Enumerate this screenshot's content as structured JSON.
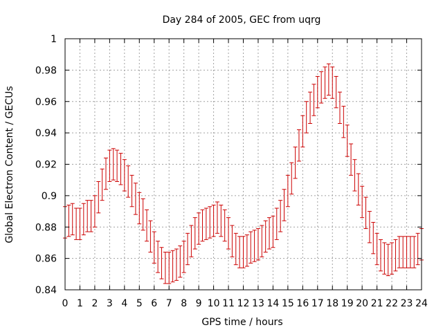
{
  "chart_data": {
    "type": "scatter",
    "title": "Day 284 of 2005, GEC from uqrg",
    "xlabel": "GPS time / hours",
    "ylabel": "Global Electron Content / GECUs",
    "xlim": [
      0,
      24
    ],
    "ylim": [
      0.84,
      1.0
    ],
    "xticks": [
      "0",
      "1",
      "2",
      "3",
      "4",
      "5",
      "6",
      "7",
      "8",
      "9",
      "10",
      "11",
      "12",
      "13",
      "14",
      "15",
      "16",
      "17",
      "18",
      "19",
      "20",
      "21",
      "22",
      "23",
      "24"
    ],
    "yticks": [
      "0.84",
      "0.86",
      "0.88",
      "0.9",
      "0.92",
      "0.94",
      "0.96",
      "0.98",
      "1"
    ],
    "grid": true,
    "legend": "none",
    "error_bar_color": "#cc0000",
    "series": [
      {
        "error": 0.01,
        "points": [
          {
            "x": 0.0,
            "y": 0.883
          },
          {
            "x": 0.25,
            "y": 0.884
          },
          {
            "x": 0.5,
            "y": 0.885
          },
          {
            "x": 0.75,
            "y": 0.882
          },
          {
            "x": 1.0,
            "y": 0.882
          },
          {
            "x": 1.25,
            "y": 0.885
          },
          {
            "x": 1.5,
            "y": 0.887
          },
          {
            "x": 1.75,
            "y": 0.887
          },
          {
            "x": 2.0,
            "y": 0.89
          },
          {
            "x": 2.25,
            "y": 0.899
          },
          {
            "x": 2.5,
            "y": 0.907
          },
          {
            "x": 2.75,
            "y": 0.914
          },
          {
            "x": 3.0,
            "y": 0.919
          },
          {
            "x": 3.25,
            "y": 0.92
          },
          {
            "x": 3.5,
            "y": 0.919
          },
          {
            "x": 3.75,
            "y": 0.917
          },
          {
            "x": 4.0,
            "y": 0.913
          },
          {
            "x": 4.25,
            "y": 0.909
          },
          {
            "x": 4.5,
            "y": 0.903
          },
          {
            "x": 4.75,
            "y": 0.898
          },
          {
            "x": 5.0,
            "y": 0.892
          },
          {
            "x": 5.25,
            "y": 0.888
          },
          {
            "x": 5.5,
            "y": 0.881
          },
          {
            "x": 5.75,
            "y": 0.874
          },
          {
            "x": 6.0,
            "y": 0.867
          },
          {
            "x": 6.25,
            "y": 0.861
          },
          {
            "x": 6.5,
            "y": 0.857
          },
          {
            "x": 6.75,
            "y": 0.854
          },
          {
            "x": 7.0,
            "y": 0.854
          },
          {
            "x": 7.25,
            "y": 0.855
          },
          {
            "x": 7.5,
            "y": 0.856
          },
          {
            "x": 7.75,
            "y": 0.858
          },
          {
            "x": 8.0,
            "y": 0.861
          },
          {
            "x": 8.25,
            "y": 0.866
          },
          {
            "x": 8.5,
            "y": 0.871
          },
          {
            "x": 8.75,
            "y": 0.876
          },
          {
            "x": 9.0,
            "y": 0.879
          },
          {
            "x": 9.25,
            "y": 0.881
          },
          {
            "x": 9.5,
            "y": 0.882
          },
          {
            "x": 9.75,
            "y": 0.883
          },
          {
            "x": 10.0,
            "y": 0.884
          },
          {
            "x": 10.25,
            "y": 0.886
          },
          {
            "x": 10.5,
            "y": 0.884
          },
          {
            "x": 10.75,
            "y": 0.881
          },
          {
            "x": 11.0,
            "y": 0.876
          },
          {
            "x": 11.25,
            "y": 0.871
          },
          {
            "x": 11.5,
            "y": 0.866
          },
          {
            "x": 11.75,
            "y": 0.864
          },
          {
            "x": 12.0,
            "y": 0.864
          },
          {
            "x": 12.25,
            "y": 0.865
          },
          {
            "x": 12.5,
            "y": 0.867
          },
          {
            "x": 12.75,
            "y": 0.868
          },
          {
            "x": 13.0,
            "y": 0.869
          },
          {
            "x": 13.25,
            "y": 0.871
          },
          {
            "x": 13.5,
            "y": 0.874
          },
          {
            "x": 13.75,
            "y": 0.876
          },
          {
            "x": 14.0,
            "y": 0.877
          },
          {
            "x": 14.25,
            "y": 0.882
          },
          {
            "x": 14.5,
            "y": 0.887
          },
          {
            "x": 14.75,
            "y": 0.894
          },
          {
            "x": 15.0,
            "y": 0.903
          },
          {
            "x": 15.25,
            "y": 0.911
          },
          {
            "x": 15.5,
            "y": 0.921
          },
          {
            "x": 15.75,
            "y": 0.932
          },
          {
            "x": 16.0,
            "y": 0.941
          },
          {
            "x": 16.25,
            "y": 0.95
          },
          {
            "x": 16.5,
            "y": 0.956
          },
          {
            "x": 16.75,
            "y": 0.961
          },
          {
            "x": 17.0,
            "y": 0.966
          },
          {
            "x": 17.25,
            "y": 0.969
          },
          {
            "x": 17.5,
            "y": 0.972
          },
          {
            "x": 17.75,
            "y": 0.974
          },
          {
            "x": 18.0,
            "y": 0.972
          },
          {
            "x": 18.25,
            "y": 0.966
          },
          {
            "x": 18.5,
            "y": 0.956
          },
          {
            "x": 18.75,
            "y": 0.947
          },
          {
            "x": 19.0,
            "y": 0.935
          },
          {
            "x": 19.25,
            "y": 0.923
          },
          {
            "x": 19.5,
            "y": 0.913
          },
          {
            "x": 19.75,
            "y": 0.904
          },
          {
            "x": 20.0,
            "y": 0.896
          },
          {
            "x": 20.25,
            "y": 0.889
          },
          {
            "x": 20.5,
            "y": 0.88
          },
          {
            "x": 20.75,
            "y": 0.873
          },
          {
            "x": 21.0,
            "y": 0.866
          },
          {
            "x": 21.25,
            "y": 0.862
          },
          {
            "x": 21.5,
            "y": 0.86
          },
          {
            "x": 21.75,
            "y": 0.859
          },
          {
            "x": 22.0,
            "y": 0.86
          },
          {
            "x": 22.25,
            "y": 0.862
          },
          {
            "x": 22.5,
            "y": 0.864
          },
          {
            "x": 22.75,
            "y": 0.864
          },
          {
            "x": 23.0,
            "y": 0.864
          },
          {
            "x": 23.25,
            "y": 0.864
          },
          {
            "x": 23.5,
            "y": 0.864
          },
          {
            "x": 23.75,
            "y": 0.866
          },
          {
            "x": 24.0,
            "y": 0.869
          }
        ]
      }
    ]
  }
}
